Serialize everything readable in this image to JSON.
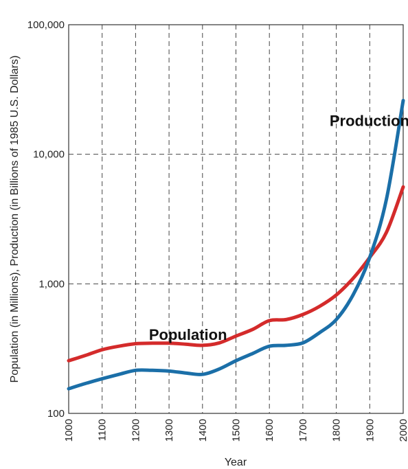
{
  "chart_data": {
    "type": "line",
    "xlabel": "Year",
    "ylabel": "Population (in Millions), Production (in Billions of 1985 U.S. Dollars)",
    "xlim": [
      1000,
      2000
    ],
    "ylim": [
      100,
      100000
    ],
    "yscale": "log",
    "grid": true,
    "legend": "inline labels",
    "x_ticks": [
      "1000",
      "1100",
      "1200",
      "1300",
      "1400",
      "1500",
      "1600",
      "1700",
      "1800",
      "1900",
      "2000"
    ],
    "y_ticks": [
      "100",
      "1,000",
      "10,000",
      "100,000"
    ],
    "series": [
      {
        "name": "Population",
        "color": "#d42b2b",
        "points": [
          [
            1000,
            255
          ],
          [
            1050,
            280
          ],
          [
            1100,
            310
          ],
          [
            1150,
            330
          ],
          [
            1200,
            345
          ],
          [
            1250,
            348
          ],
          [
            1300,
            348
          ],
          [
            1350,
            342
          ],
          [
            1400,
            335
          ],
          [
            1450,
            350
          ],
          [
            1500,
            395
          ],
          [
            1550,
            445
          ],
          [
            1600,
            520
          ],
          [
            1650,
            530
          ],
          [
            1700,
            580
          ],
          [
            1750,
            670
          ],
          [
            1800,
            820
          ],
          [
            1850,
            1100
          ],
          [
            1900,
            1600
          ],
          [
            1950,
            2500
          ],
          [
            2000,
            5600
          ]
        ]
      },
      {
        "name": "Production",
        "color": "#1b6fa8",
        "points": [
          [
            1000,
            155
          ],
          [
            1050,
            170
          ],
          [
            1100,
            185
          ],
          [
            1150,
            200
          ],
          [
            1200,
            215
          ],
          [
            1250,
            215
          ],
          [
            1300,
            212
          ],
          [
            1350,
            205
          ],
          [
            1400,
            200
          ],
          [
            1450,
            220
          ],
          [
            1500,
            255
          ],
          [
            1550,
            290
          ],
          [
            1600,
            330
          ],
          [
            1650,
            335
          ],
          [
            1700,
            350
          ],
          [
            1750,
            420
          ],
          [
            1800,
            530
          ],
          [
            1850,
            820
          ],
          [
            1900,
            1600
          ],
          [
            1950,
            4500
          ],
          [
            2000,
            26000
          ]
        ]
      }
    ]
  }
}
